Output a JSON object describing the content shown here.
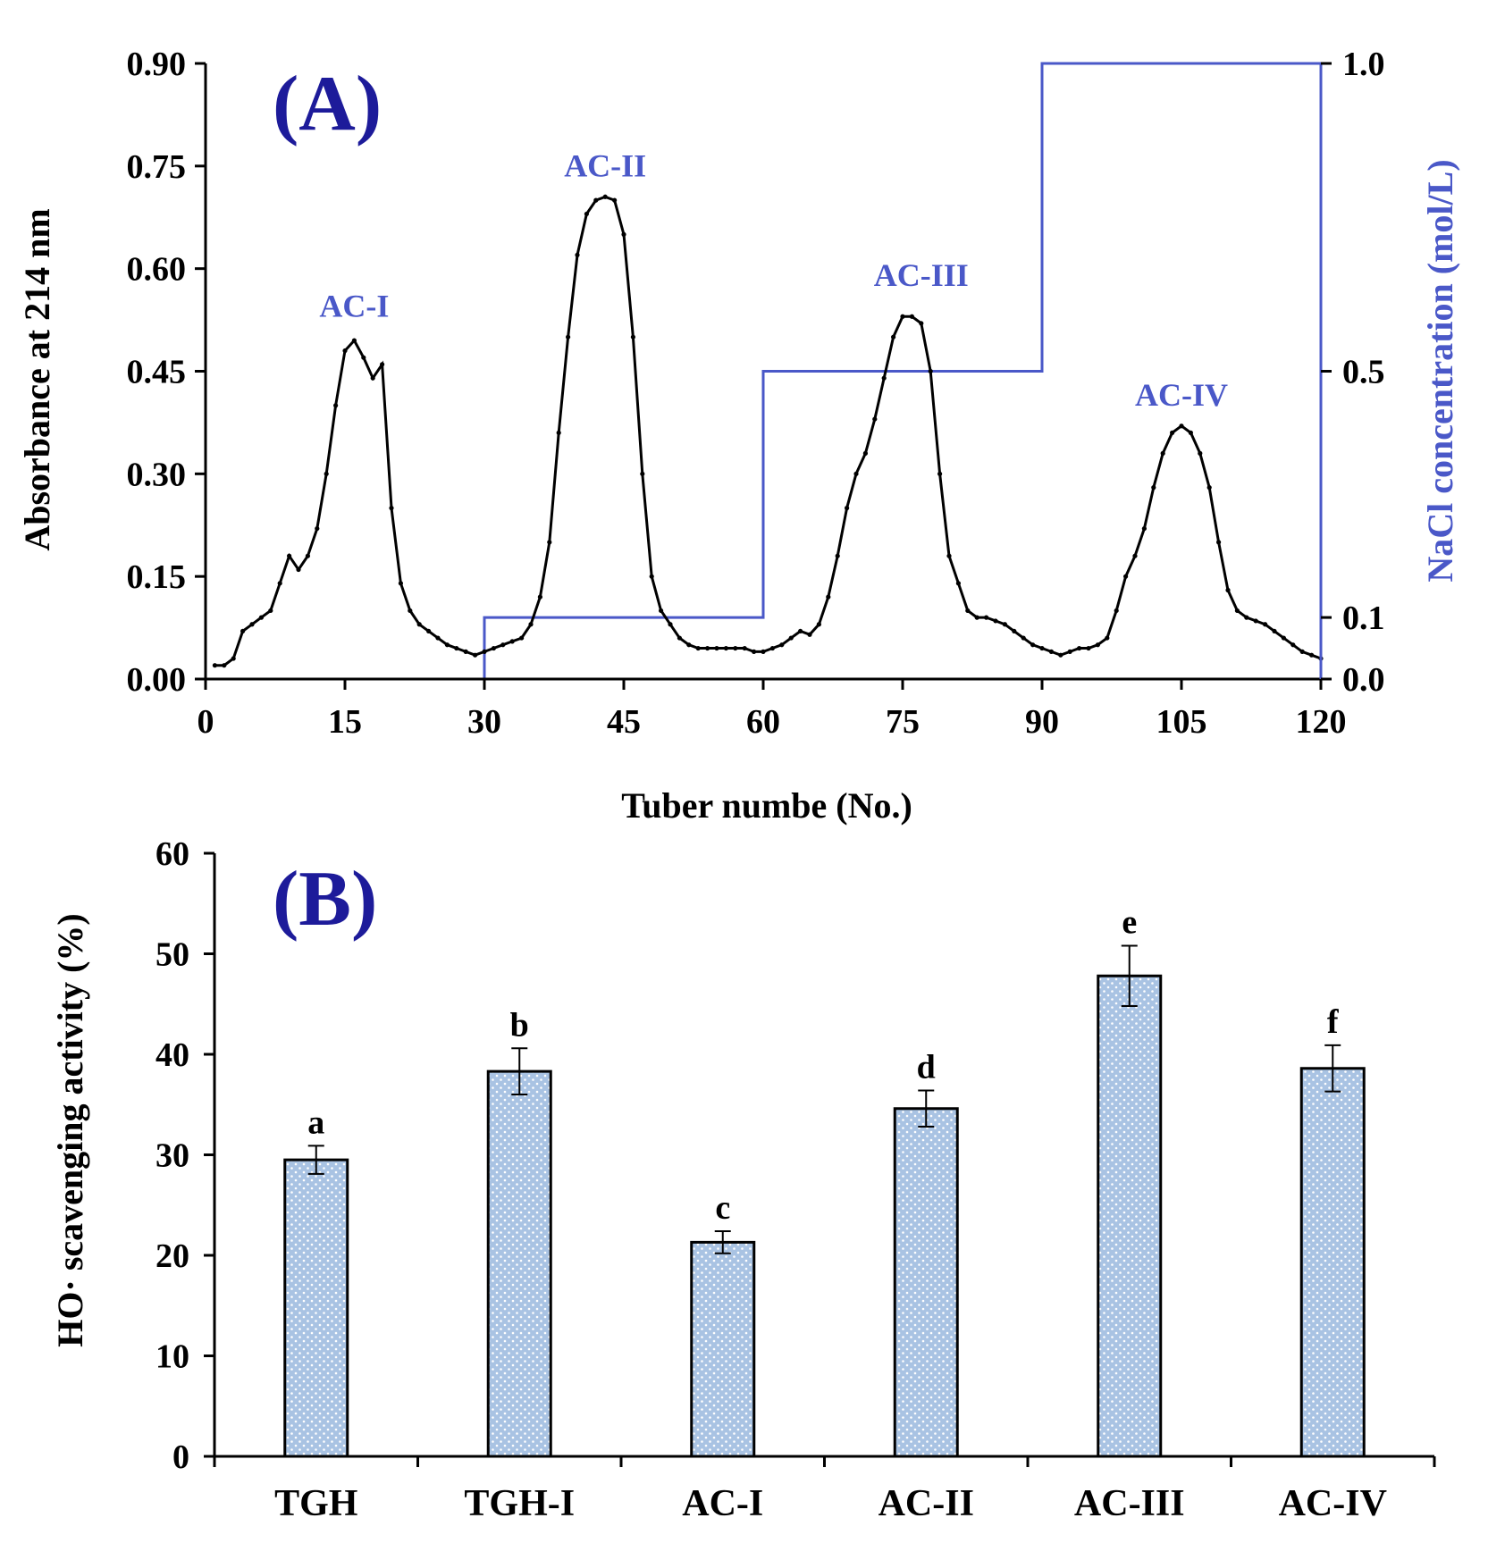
{
  "colors": {
    "curve": "#000000",
    "salt": "#4a58c8",
    "panel_label": "#1d1b9a",
    "bar_fill": "#a9c3e3",
    "bar_dot": "#ffffff",
    "axis": "#000000"
  },
  "chart_data": [
    {
      "panel": "A",
      "panel_label": "(A)",
      "type": "line",
      "xlabel": "Tuber numbe (No.)",
      "ylabel": "Absorbance at 214 nm",
      "ylabel_right": "NaCl concentration (mol/L)",
      "xlim": [
        0,
        120
      ],
      "ylim": [
        0,
        0.9
      ],
      "ylim_right": [
        0,
        1.0
      ],
      "x_ticks": [
        0,
        15,
        30,
        45,
        60,
        75,
        90,
        105,
        120
      ],
      "x_tick_labels": [
        "0",
        "15",
        "30",
        "45",
        "60",
        "75",
        "90",
        "105",
        "120"
      ],
      "y_ticks": [
        0,
        0.15,
        0.3,
        0.45,
        0.6,
        0.75,
        0.9
      ],
      "y_tick_labels": [
        "0.00",
        "0.15",
        "0.30",
        "0.45",
        "0.60",
        "0.75",
        "0.90"
      ],
      "y_right_ticks": [
        0,
        0.1,
        0.5,
        1.0
      ],
      "y_right_tick_labels": [
        "0.0",
        "0.1",
        "0.5",
        "1.0"
      ],
      "peak_labels": [
        {
          "text": "AC-I",
          "x": 16,
          "y": 0.53
        },
        {
          "text": "AC-II",
          "x": 43,
          "y": 0.735
        },
        {
          "text": "AC-III",
          "x": 77,
          "y": 0.575
        },
        {
          "text": "AC-IV",
          "x": 105,
          "y": 0.4
        }
      ],
      "series": [
        {
          "name": "Absorbance at 214 nm",
          "x": [
            1,
            2,
            3,
            4,
            5,
            6,
            7,
            8,
            9,
            10,
            11,
            12,
            13,
            14,
            15,
            16,
            17,
            18,
            19,
            20,
            21,
            22,
            23,
            24,
            25,
            26,
            27,
            28,
            29,
            30,
            31,
            32,
            33,
            34,
            35,
            36,
            37,
            38,
            39,
            40,
            41,
            42,
            43,
            44,
            45,
            46,
            47,
            48,
            49,
            50,
            51,
            52,
            53,
            54,
            55,
            56,
            57,
            58,
            59,
            60,
            61,
            62,
            63,
            64,
            65,
            66,
            67,
            68,
            69,
            70,
            71,
            72,
            73,
            74,
            75,
            76,
            77,
            78,
            79,
            80,
            81,
            82,
            83,
            84,
            85,
            86,
            87,
            88,
            89,
            90,
            91,
            92,
            93,
            94,
            95,
            96,
            97,
            98,
            99,
            100,
            101,
            102,
            103,
            104,
            105,
            106,
            107,
            108,
            109,
            110,
            111,
            112,
            113,
            114,
            115,
            116,
            117,
            118,
            119,
            120
          ],
          "y": [
            0.02,
            0.02,
            0.03,
            0.07,
            0.08,
            0.09,
            0.1,
            0.14,
            0.18,
            0.16,
            0.18,
            0.22,
            0.3,
            0.4,
            0.48,
            0.495,
            0.47,
            0.44,
            0.46,
            0.25,
            0.14,
            0.1,
            0.08,
            0.07,
            0.06,
            0.05,
            0.045,
            0.04,
            0.035,
            0.04,
            0.045,
            0.05,
            0.055,
            0.06,
            0.08,
            0.12,
            0.2,
            0.36,
            0.5,
            0.62,
            0.68,
            0.7,
            0.705,
            0.7,
            0.65,
            0.5,
            0.3,
            0.15,
            0.1,
            0.08,
            0.06,
            0.05,
            0.045,
            0.045,
            0.045,
            0.045,
            0.045,
            0.045,
            0.04,
            0.04,
            0.045,
            0.05,
            0.06,
            0.07,
            0.065,
            0.08,
            0.12,
            0.18,
            0.25,
            0.3,
            0.33,
            0.38,
            0.44,
            0.5,
            0.53,
            0.53,
            0.52,
            0.45,
            0.3,
            0.18,
            0.14,
            0.1,
            0.09,
            0.09,
            0.085,
            0.08,
            0.07,
            0.06,
            0.05,
            0.045,
            0.04,
            0.035,
            0.04,
            0.045,
            0.045,
            0.05,
            0.06,
            0.1,
            0.15,
            0.18,
            0.22,
            0.28,
            0.33,
            0.36,
            0.37,
            0.36,
            0.33,
            0.28,
            0.2,
            0.13,
            0.1,
            0.09,
            0.085,
            0.08,
            0.07,
            0.06,
            0.05,
            0.04,
            0.035,
            0.03
          ]
        },
        {
          "name": "NaCl concentration (mol/L)",
          "axis": "right",
          "x": [
            30,
            30,
            60,
            60,
            90,
            90,
            120,
            120
          ],
          "y": [
            0,
            0.1,
            0.1,
            0.5,
            0.5,
            1.0,
            1.0,
            0
          ]
        }
      ]
    },
    {
      "panel": "B",
      "panel_label": "(B)",
      "type": "bar",
      "ylabel": "HO· scavenging activity (%)",
      "ylim": [
        0,
        60
      ],
      "y_ticks": [
        0,
        10,
        20,
        30,
        40,
        50,
        60
      ],
      "y_tick_labels": [
        "0",
        "10",
        "20",
        "30",
        "40",
        "50",
        "60"
      ],
      "categories": [
        "TGH",
        "TGH-I",
        "AC-I",
        "AC-II",
        "AC-III",
        "AC-IV"
      ],
      "values": [
        29.5,
        38.3,
        21.3,
        34.6,
        47.8,
        38.6
      ],
      "errors": [
        1.4,
        2.3,
        1.1,
        1.8,
        3.0,
        2.3
      ],
      "significance": [
        "a",
        "b",
        "c",
        "d",
        "e",
        "f"
      ]
    }
  ]
}
